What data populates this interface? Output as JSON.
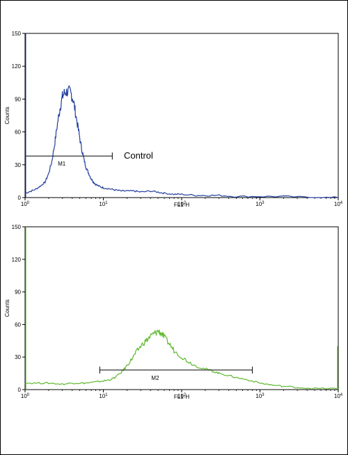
{
  "chart_data": [
    {
      "type": "line",
      "xscale": "log",
      "xlim": [
        1,
        10000
      ],
      "ylim": [
        0,
        150
      ],
      "xlabel": "FL1-H",
      "ylabel": "Counts",
      "yticks": [
        "0",
        "30",
        "60",
        "90",
        "120",
        "150"
      ],
      "xticks": [
        {
          "base": "10",
          "exp": "0"
        },
        {
          "base": "10",
          "exp": "1"
        },
        {
          "base": "10",
          "exp": "2"
        },
        {
          "base": "10",
          "exp": "3"
        },
        {
          "base": "10",
          "exp": "4"
        }
      ],
      "color": "#1f3c9c",
      "annotation": "Control",
      "gate": {
        "label": "M1",
        "x_start": 1,
        "x_end": 13,
        "y": 38
      },
      "series": [
        {
          "x": [
            1,
            1.2,
            1.4,
            1.6,
            1.8,
            2.0,
            2.2,
            2.4,
            2.6,
            2.8,
            3.0,
            3.2,
            3.5,
            3.8,
            4.1,
            4.4,
            4.8,
            5.2,
            5.6,
            6.0,
            6.5,
            7.0,
            7.5,
            8.0,
            9.0,
            10,
            12,
            14,
            17,
            20,
            25,
            30,
            40,
            50,
            60,
            80,
            100,
            150,
            200,
            300,
            500,
            1000,
            2000,
            5000,
            10000
          ],
          "y": [
            4,
            6,
            8,
            11,
            14,
            22,
            33,
            50,
            68,
            82,
            92,
            96,
            97,
            96,
            90,
            78,
            62,
            47,
            36,
            28,
            22,
            17,
            14,
            12,
            10,
            9,
            8,
            7,
            6,
            6,
            6,
            5,
            6,
            5,
            4,
            3,
            3,
            2,
            2,
            2,
            1,
            1,
            1,
            0,
            0
          ]
        }
      ]
    },
    {
      "type": "line",
      "xscale": "log",
      "xlim": [
        1,
        10000
      ],
      "ylim": [
        0,
        150
      ],
      "xlabel": "FL1-H",
      "ylabel": "Counts",
      "yticks": [
        "0",
        "30",
        "60",
        "90",
        "120",
        "150"
      ],
      "xticks": [
        {
          "base": "10",
          "exp": "0"
        },
        {
          "base": "10",
          "exp": "1"
        },
        {
          "base": "10",
          "exp": "2"
        },
        {
          "base": "10",
          "exp": "3"
        },
        {
          "base": "10",
          "exp": "4"
        }
      ],
      "color": "#5cb82c",
      "gate": {
        "label": "M2",
        "x_start": 9,
        "x_end": 800,
        "y": 18
      },
      "series": [
        {
          "x": [
            1,
            1.5,
            2,
            3,
            4,
            5,
            6,
            8,
            10,
            12,
            14,
            17,
            20,
            23,
            26,
            30,
            35,
            40,
            45,
            50,
            55,
            60,
            70,
            80,
            100,
            120,
            150,
            200,
            250,
            300,
            400,
            500,
            700,
            1000,
            1500,
            2000,
            3000,
            5000,
            8000,
            10000
          ],
          "y": [
            6,
            6,
            6,
            5,
            6,
            6,
            6,
            7,
            8,
            9,
            11,
            16,
            22,
            28,
            34,
            40,
            45,
            49,
            52,
            54,
            52,
            48,
            42,
            36,
            30,
            26,
            22,
            19,
            17,
            15,
            13,
            11,
            9,
            6,
            4,
            3,
            2,
            1,
            1,
            1
          ]
        }
      ]
    }
  ]
}
